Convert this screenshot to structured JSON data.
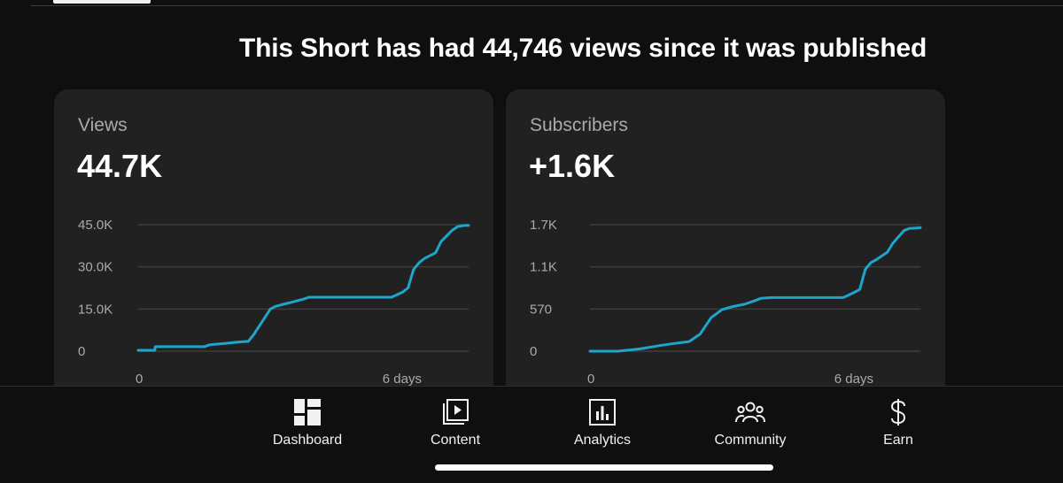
{
  "headline": "This Short has had 44,746 views since it was published",
  "cards": [
    {
      "title": "Views",
      "value": "44.7K",
      "y_ticks": [
        "45.0K",
        "30.0K",
        "15.0K",
        "0"
      ],
      "x_ticks": [
        "0",
        "6 days"
      ]
    },
    {
      "title": "Subscribers",
      "value": "+1.6K",
      "y_ticks": [
        "1.7K",
        "1.1K",
        "570",
        "0"
      ],
      "x_ticks": [
        "0",
        "6 days"
      ]
    }
  ],
  "chart_data": [
    {
      "type": "line",
      "ylim": [
        0,
        45000
      ],
      "x_unit": "days",
      "x": [
        0,
        0.3,
        0.31,
        0.7,
        0.75,
        0.8,
        1.2,
        1.3,
        1.6,
        1.8,
        2.0,
        2.1,
        2.3,
        2.4,
        2.5,
        2.6,
        2.7,
        2.8,
        3.0,
        3.1,
        3.3,
        3.4,
        4.6,
        4.8,
        4.9,
        5.0,
        5.1,
        5.2,
        5.4,
        5.5,
        5.7,
        5.8,
        5.9,
        6.0
      ],
      "y": [
        300,
        300,
        1600,
        1600,
        1600,
        1600,
        1600,
        2300,
        2800,
        3200,
        3500,
        6000,
        12000,
        15000,
        16000,
        16500,
        17000,
        17500,
        18500,
        19200,
        19200,
        19200,
        19200,
        21000,
        22500,
        29000,
        31500,
        33000,
        35000,
        39000,
        43000,
        44300,
        44700,
        44746
      ],
      "series": [
        {
          "name": "",
          "color": "#1ea5cc"
        }
      ]
    },
    {
      "type": "line",
      "ylim": [
        0,
        1700
      ],
      "x_unit": "days",
      "x": [
        0,
        0.5,
        0.9,
        1.3,
        1.6,
        1.8,
        2.0,
        2.2,
        2.4,
        2.6,
        2.8,
        3.0,
        3.1,
        3.3,
        4.6,
        4.8,
        4.9,
        5.0,
        5.1,
        5.2,
        5.4,
        5.5,
        5.7,
        5.8,
        6.0
      ],
      "y": [
        0,
        0,
        30,
        80,
        110,
        130,
        230,
        450,
        560,
        600,
        630,
        680,
        710,
        720,
        720,
        790,
        830,
        1100,
        1190,
        1230,
        1330,
        1450,
        1620,
        1650,
        1660
      ],
      "series": [
        {
          "name": "",
          "color": "#1ea5cc"
        }
      ]
    }
  ],
  "nav": {
    "items": [
      {
        "label": "Dashboard",
        "icon": "dashboard-icon"
      },
      {
        "label": "Content",
        "icon": "content-icon"
      },
      {
        "label": "Analytics",
        "icon": "analytics-icon"
      },
      {
        "label": "Community",
        "icon": "community-icon"
      },
      {
        "label": "Earn",
        "icon": "dollar-icon"
      }
    ]
  },
  "colors": {
    "background": "#0f0f0f",
    "card": "#212121",
    "line": "#1ea5cc",
    "muted_text": "#aaaaaa"
  }
}
